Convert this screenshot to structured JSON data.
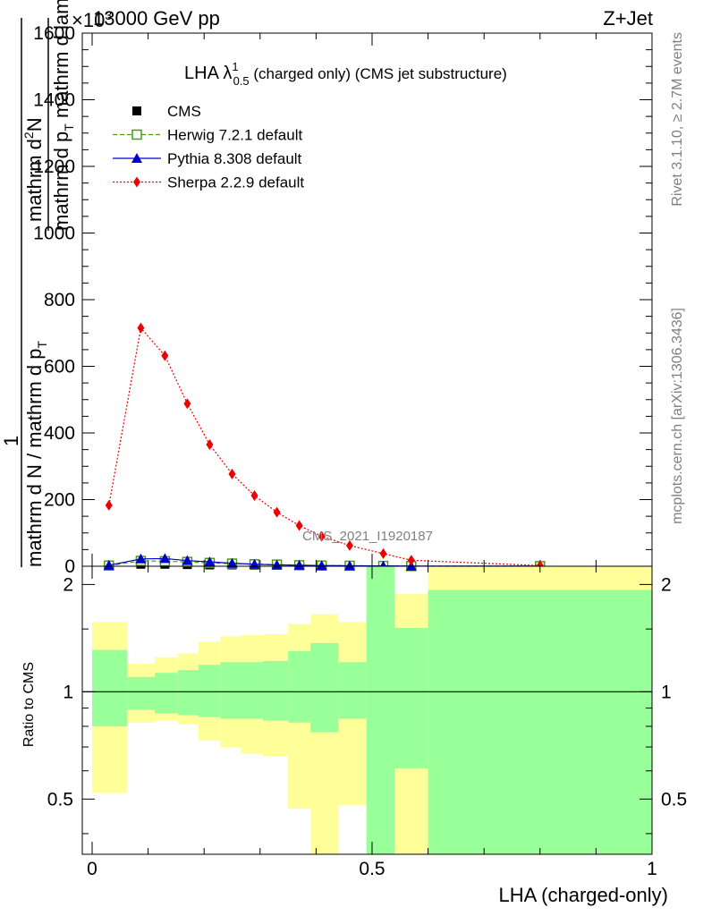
{
  "header": {
    "left_text": "13000 GeV pp",
    "right_text": "Z+Jet",
    "exponent_label": "×10",
    "exponent_power": "3"
  },
  "side_labels": {
    "rivet": "Rivet 3.1.10, ≥ 2.7M events",
    "mcplots": "mcplots.cern.ch [arXiv:1306.3436]"
  },
  "chart_data": [
    {
      "type": "line",
      "title_main": "LHA λ",
      "title_sup": "1",
      "title_sub": "0.5",
      "title_rest": " (charged only) (CMS jet substructure)",
      "ylabel": "1 / (mathrm d N / mathrm d p_T) · mathrm d²N / (mathrm d p_T mathrm d lambda)",
      "ylabel_parts": {
        "num_top": "mathrm d",
        "num_sup": "2",
        "num_N": "N",
        "den_main": "mathrm d p",
        "den_sub": "T",
        "den_rest": " mathrm d lambda",
        "frac_one": "1",
        "frac2_left": "mathrm d N / mathrm d p",
        "frac2_sub": "T"
      },
      "watermark": "CMS_2021_I1920187",
      "xlim": [
        0,
        1
      ],
      "ylim": [
        0,
        1600
      ],
      "yticks": [
        0,
        200,
        400,
        600,
        800,
        1000,
        1200,
        1400,
        1600
      ],
      "ytick_labels": [
        "0",
        "200",
        "400",
        "600",
        "800",
        "1000",
        "1200",
        "1400",
        "1600"
      ],
      "legend_position": "top-left",
      "x": [
        0.03,
        0.087,
        0.13,
        0.17,
        0.21,
        0.25,
        0.29,
        0.33,
        0.37,
        0.41,
        0.46,
        0.52,
        0.57,
        0.8
      ],
      "series": [
        {
          "name": "CMS",
          "color": "#000000",
          "marker": "square",
          "values": [
            4,
            6,
            6,
            5,
            4,
            4,
            3,
            3,
            2,
            2,
            2,
            1,
            1,
            1
          ]
        },
        {
          "name": "Herwig 7.2.1 default",
          "color": "#4c9a1a",
          "marker": "open-square",
          "dash": "dashed",
          "values": [
            2,
            16,
            15,
            13,
            10,
            8,
            6,
            5,
            3,
            2,
            1.5,
            1,
            0.5,
            0.3
          ]
        },
        {
          "name": "Pythia 8.308 default",
          "color": "#0000cc",
          "marker": "triangle",
          "dash": "solid",
          "values": [
            3,
            22,
            23,
            17,
            13,
            9,
            6,
            4,
            3,
            2,
            1.5,
            1,
            0.5,
            0.3
          ]
        },
        {
          "name": "Sherpa 2.2.9 default",
          "color": "#ee0000",
          "marker": "diamond",
          "dash": "dotted",
          "values": [
            183,
            715,
            632,
            488,
            365,
            277,
            212,
            162,
            122,
            90,
            62,
            38,
            18,
            2
          ]
        }
      ]
    },
    {
      "type": "area",
      "ylabel": "Ratio to CMS",
      "xlabel": "LHA (charged-only)",
      "xlim": [
        0,
        1
      ],
      "ylim": [
        0.35,
        2.25
      ],
      "yticks": [
        0.5,
        1,
        2
      ],
      "ytick_labels": [
        "0.5",
        "1",
        "2"
      ],
      "xticks": [
        0,
        0.5,
        1
      ],
      "xtick_labels": [
        "0",
        "0.5",
        "1"
      ],
      "reference_line": 1,
      "band_colors": {
        "stat": "#99ff99",
        "total": "#ffff99"
      },
      "bins": [
        {
          "lo": 0.0,
          "hi": 0.063,
          "stat": [
            0.8,
            1.31
          ],
          "total": [
            0.52,
            1.57
          ]
        },
        {
          "lo": 0.063,
          "hi": 0.112,
          "stat": [
            0.89,
            1.1
          ],
          "total": [
            0.82,
            1.2
          ]
        },
        {
          "lo": 0.112,
          "hi": 0.153,
          "stat": [
            0.87,
            1.13
          ],
          "total": [
            0.83,
            1.25
          ]
        },
        {
          "lo": 0.153,
          "hi": 0.19,
          "stat": [
            0.86,
            1.15
          ],
          "total": [
            0.81,
            1.28
          ]
        },
        {
          "lo": 0.19,
          "hi": 0.229,
          "stat": [
            0.85,
            1.19
          ],
          "total": [
            0.73,
            1.38
          ]
        },
        {
          "lo": 0.229,
          "hi": 0.266,
          "stat": [
            0.84,
            1.21
          ],
          "total": [
            0.7,
            1.43
          ]
        },
        {
          "lo": 0.266,
          "hi": 0.305,
          "stat": [
            0.84,
            1.21
          ],
          "total": [
            0.67,
            1.44
          ]
        },
        {
          "lo": 0.305,
          "hi": 0.35,
          "stat": [
            0.83,
            1.22
          ],
          "total": [
            0.66,
            1.45
          ]
        },
        {
          "lo": 0.35,
          "hi": 0.39,
          "stat": [
            0.82,
            1.3
          ],
          "total": [
            0.47,
            1.55
          ]
        },
        {
          "lo": 0.39,
          "hi": 0.44,
          "stat": [
            0.77,
            1.37
          ],
          "total": [
            0.35,
            1.65
          ]
        },
        {
          "lo": 0.44,
          "hi": 0.49,
          "stat": [
            0.84,
            1.21
          ],
          "total": [
            0.48,
            1.57
          ]
        },
        {
          "lo": 0.49,
          "hi": 0.54,
          "stat": [
            0.35,
            2.25
          ],
          "total": [
            0.35,
            2.25
          ]
        },
        {
          "lo": 0.54,
          "hi": 0.6,
          "stat": [
            0.61,
            1.51
          ],
          "total": [
            0.35,
            1.88
          ]
        },
        {
          "lo": 0.6,
          "hi": 1.0,
          "stat": [
            0.35,
            1.93
          ],
          "total": [
            0.35,
            2.25
          ]
        }
      ]
    }
  ]
}
